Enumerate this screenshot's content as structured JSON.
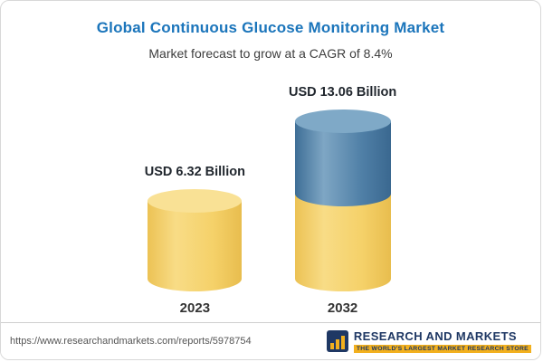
{
  "header": {
    "title": "Global Continuous Glucose Monitoring Market",
    "subtitle": "Market forecast to grow at a CAGR of 8.4%"
  },
  "chart_data": {
    "type": "bar",
    "title": "Global Continuous Glucose Monitoring Market",
    "subtitle": "Market forecast to grow at a CAGR of 8.4%",
    "categories": [
      "2023",
      "2032"
    ],
    "values": [
      6.32,
      13.06
    ],
    "value_labels": [
      "USD 6.32 Billion",
      "USD 13.06 Billion"
    ],
    "unit": "USD Billion",
    "cagr_percent": 8.4,
    "legend_position": "none",
    "grid": false,
    "colors": {
      "base_yellow": "#F5D169",
      "growth_blue": "#4F7FA6",
      "title_blue": "#1B75BB"
    }
  },
  "footer": {
    "url": "https://www.researchandmarkets.com/reports/5978754",
    "logo_text": "RESEARCH AND MARKETS",
    "logo_tagline": "THE WORLD'S LARGEST MARKET RESEARCH STORE"
  }
}
